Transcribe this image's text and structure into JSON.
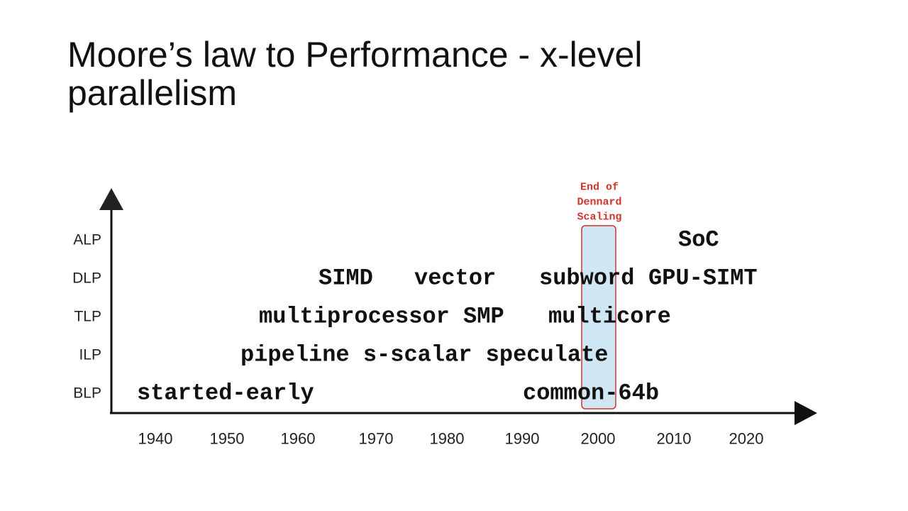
{
  "title": "Moore’s law to Performance - x-level parallelism",
  "levels": [
    "ALP",
    "DLP",
    "TLP",
    "ILP",
    "BLP"
  ],
  "years": [
    "1940",
    "1950",
    "1960",
    "1970",
    "1980",
    "1990",
    "2000",
    "2010",
    "2020"
  ],
  "items": {
    "alp": [
      "SoC"
    ],
    "dlp": [
      "SIMD",
      "vector",
      "subword",
      "GPU-SIMT"
    ],
    "tlp": [
      "multiprocessor SMP",
      "multicore"
    ],
    "ilp": [
      "pipeline s-scalar speculate"
    ],
    "blp": [
      "started-early",
      "common-64b"
    ]
  },
  "annotation": {
    "lines": [
      "End of",
      "Dennard",
      "Scaling"
    ]
  }
}
